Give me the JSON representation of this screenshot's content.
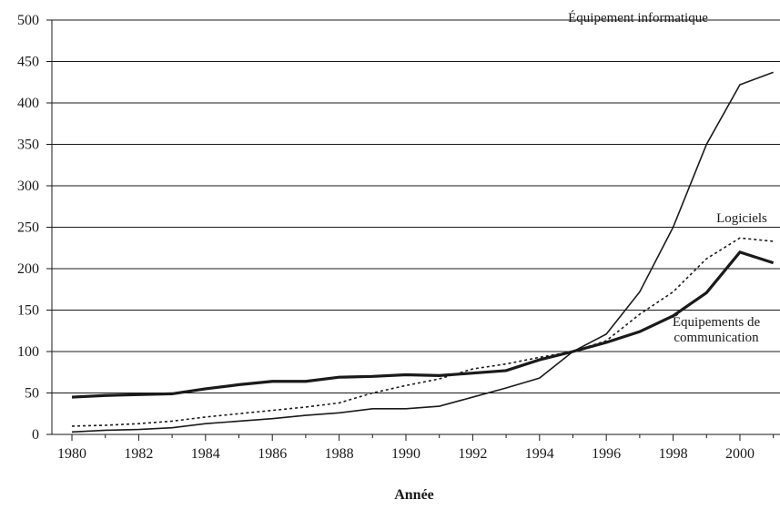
{
  "chart_data": {
    "type": "line",
    "x_label": "Année",
    "x": [
      1980,
      1981,
      1982,
      1983,
      1984,
      1985,
      1986,
      1987,
      1988,
      1989,
      1990,
      1991,
      1992,
      1993,
      1994,
      1995,
      1996,
      1997,
      1998,
      1999,
      2000,
      2001
    ],
    "series": [
      {
        "name": "Équipement informatique",
        "color": "#1a1a1a",
        "style": "solid",
        "width": 1.6,
        "values": [
          3,
          5,
          6,
          8,
          13,
          16,
          19,
          23,
          26,
          31,
          31,
          34,
          45,
          56,
          68,
          100,
          121,
          172,
          250,
          350,
          422,
          437
        ]
      },
      {
        "name": "Logiciels",
        "color": "#1a1a1a",
        "style": "dotted",
        "width": 1.6,
        "values": [
          10,
          11,
          13,
          16,
          21,
          25,
          29,
          33,
          38,
          50,
          59,
          67,
          79,
          85,
          93,
          100,
          113,
          145,
          172,
          212,
          237,
          233
        ]
      },
      {
        "name": "Équipements de communication",
        "color": "#1a1a1a",
        "style": "solid",
        "width": 3.2,
        "values": [
          45,
          47,
          48,
          49,
          55,
          60,
          64,
          64,
          69,
          70,
          72,
          71,
          74,
          77,
          90,
          100,
          111,
          124,
          143,
          171,
          220,
          207
        ]
      }
    ],
    "xlim": [
      1979.4,
      2001.2
    ],
    "ylim": [
      0,
      500
    ],
    "xticks": [
      1980,
      1982,
      1984,
      1986,
      1988,
      1990,
      1992,
      1994,
      1996,
      1998,
      2000
    ],
    "yticks": [
      0,
      50,
      100,
      150,
      200,
      250,
      300,
      350,
      400,
      450,
      500
    ],
    "grid": true
  }
}
